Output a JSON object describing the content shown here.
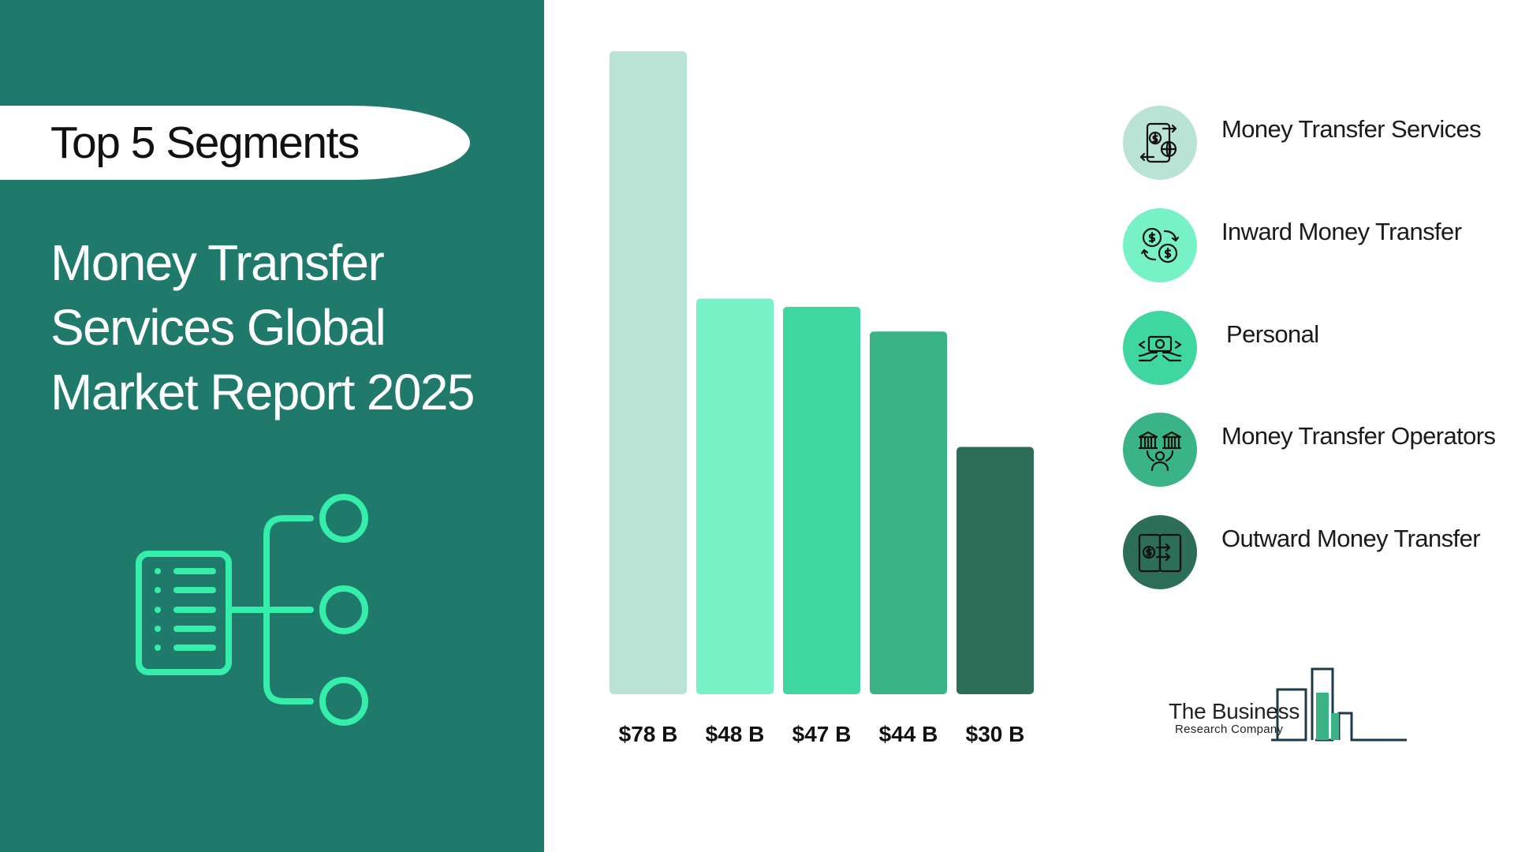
{
  "header": {
    "pill_label": "Top 5 Segments",
    "title_lines": [
      "Money Transfer",
      "Services Global",
      "Market Report 2025"
    ]
  },
  "chart_data": {
    "type": "bar",
    "categories": [
      "Money Transfer Services",
      "Inward Money Transfer",
      "Personal",
      "Money Transfer Operators",
      "Outward Money Transfer"
    ],
    "values": [
      78,
      48,
      47,
      44,
      30
    ],
    "value_labels": [
      "$78 B",
      "$48 B",
      "$47 B",
      "$44 B",
      "$30 B"
    ],
    "unit": "B",
    "ylim": [
      0,
      78
    ],
    "colors": [
      "#b9e3d4",
      "#76f2c6",
      "#40d69f",
      "#3ab487",
      "#2c6e58"
    ],
    "grid": false,
    "legend_placement": "right"
  },
  "legend": [
    {
      "label": "Money Transfer Services",
      "icon": "phone-transfer-globe-icon",
      "color": "#b9e3d4"
    },
    {
      "label": "Inward Money Transfer",
      "icon": "coins-exchange-icon",
      "color": "#76f2c6"
    },
    {
      "label": "Personal",
      "icon": "cash-hands-icon",
      "color": "#40d69f"
    },
    {
      "label": "Money Transfer Operators",
      "icon": "banks-person-icon",
      "color": "#3ab487"
    },
    {
      "label": "Outward Money Transfer",
      "icon": "phones-send-money-icon",
      "color": "#2c6e58"
    }
  ],
  "logo": {
    "line1": "The Business",
    "line2": "Research Company",
    "color_dark": "#1e3a4a",
    "color_accent": "#3ab487"
  },
  "theme": {
    "panel": "#207a6c",
    "accent": "#35eea9"
  }
}
